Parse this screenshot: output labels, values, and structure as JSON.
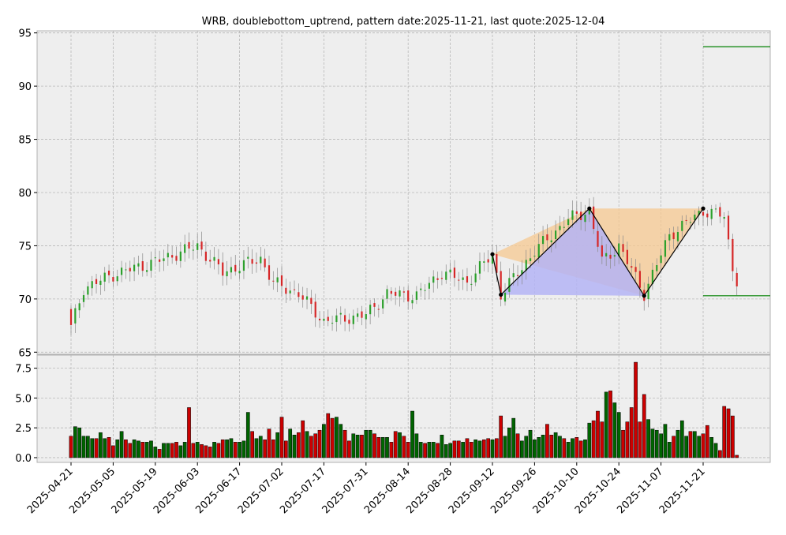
{
  "chart_data": {
    "type": "candlestick",
    "title": "WRB, doublebottom_uptrend, pattern date:2025-11-21, last quote:2025-12-04",
    "price_axis": {
      "ylim": [
        64.8,
        95.2
      ],
      "ticks": [
        "65",
        "70",
        "75",
        "80",
        "85",
        "90",
        "95"
      ]
    },
    "volume_axis": {
      "ylim": [
        -0.4,
        8.6
      ],
      "ticks": [
        "0.0",
        "2.5",
        "5.0",
        "7.5"
      ]
    },
    "x_tick_labels": [
      "2025-04-21",
      "2025-05-05",
      "2025-05-19",
      "2025-06-03",
      "2025-06-17",
      "2025-07-02",
      "2025-07-17",
      "2025-07-31",
      "2025-08-14",
      "2025-08-28",
      "2025-09-12",
      "2025-09-26",
      "2025-10-10",
      "2025-10-24",
      "2025-11-07",
      "2025-11-21"
    ],
    "grid": true,
    "colors": {
      "up": "#2ca02c",
      "down": "#d62728",
      "volume_up": "#006400",
      "volume_down": "#cc0000",
      "pattern_line": "#000000",
      "level_line": "#008000",
      "fill_orange": "#f5c890",
      "fill_blue": "#b4b4f5",
      "panel_bg": "#eeeeee"
    },
    "pattern_points": [
      {
        "bar": 100,
        "price": 74.2
      },
      {
        "bar": 102,
        "price": 70.4
      },
      {
        "bar": 123,
        "price": 78.5
      },
      {
        "bar": 136,
        "price": 70.3
      },
      {
        "bar": 150,
        "price": 78.5
      }
    ],
    "levels": [
      {
        "price": 93.7
      },
      {
        "price": 70.3
      }
    ],
    "price_key": [
      {
        "bar": 0,
        "close": 67.3
      },
      {
        "bar": 3,
        "close": 71.0
      },
      {
        "bar": 10,
        "close": 72.3
      },
      {
        "bar": 20,
        "close": 73.5
      },
      {
        "bar": 30,
        "close": 75.0
      },
      {
        "bar": 36,
        "close": 72.5
      },
      {
        "bar": 45,
        "close": 73.8
      },
      {
        "bar": 48,
        "close": 71.5
      },
      {
        "bar": 54,
        "close": 70.5
      },
      {
        "bar": 60,
        "close": 67.9
      },
      {
        "bar": 70,
        "close": 68.5
      },
      {
        "bar": 75,
        "close": 70.5
      },
      {
        "bar": 82,
        "close": 70.3
      },
      {
        "bar": 88,
        "close": 72.5
      },
      {
        "bar": 94,
        "close": 71.6
      },
      {
        "bar": 100,
        "close": 74.2
      },
      {
        "bar": 102,
        "close": 70.4
      },
      {
        "bar": 110,
        "close": 74.5
      },
      {
        "bar": 118,
        "close": 77.5
      },
      {
        "bar": 123,
        "close": 78.3
      },
      {
        "bar": 126,
        "close": 73.5
      },
      {
        "bar": 130,
        "close": 75.0
      },
      {
        "bar": 136,
        "close": 70.5
      },
      {
        "bar": 142,
        "close": 76.0
      },
      {
        "bar": 150,
        "close": 78.3
      },
      {
        "bar": 155,
        "close": 77.8
      },
      {
        "bar": 157,
        "close": 72.8
      },
      {
        "bar": 159,
        "close": 70.8
      }
    ],
    "volumes": [
      1.8,
      2.6,
      2.5,
      1.8,
      1.8,
      1.6,
      1.6,
      2.1,
      1.6,
      1.7,
      1.0,
      1.5,
      2.2,
      1.5,
      1.2,
      1.5,
      1.4,
      1.3,
      1.3,
      1.4,
      0.9,
      0.7,
      1.2,
      1.2,
      1.2,
      1.3,
      1.0,
      1.3,
      4.2,
      1.2,
      1.3,
      1.1,
      1.0,
      0.9,
      1.3,
      1.2,
      1.5,
      1.5,
      1.6,
      1.3,
      1.3,
      1.4,
      3.8,
      2.2,
      1.6,
      1.8,
      1.5,
      2.4,
      1.5,
      2.1,
      3.4,
      1.4,
      2.4,
      1.9,
      2.1,
      3.1,
      2.2,
      1.8,
      2.0,
      2.3,
      2.8,
      3.7,
      3.3,
      3.4,
      2.8,
      2.3,
      1.4,
      2.0,
      1.9,
      1.9,
      2.3,
      2.3,
      2.0,
      1.7,
      1.7,
      1.7,
      1.3,
      2.2,
      2.1,
      1.8,
      1.3,
      3.9,
      2.0,
      1.3,
      1.2,
      1.3,
      1.3,
      1.2,
      1.9,
      1.1,
      1.2,
      1.4,
      1.4,
      1.3,
      1.6,
      1.3,
      1.5,
      1.4,
      1.5,
      1.6,
      1.5,
      1.6,
      3.5,
      1.8,
      2.5,
      3.3,
      2.0,
      1.4,
      1.8,
      2.3,
      1.5,
      1.7,
      1.9,
      2.8,
      1.9,
      2.1,
      1.8,
      1.6,
      1.3,
      1.6,
      1.7,
      1.4,
      1.5,
      2.9,
      3.1,
      3.9,
      3.0,
      5.5,
      5.6,
      4.6,
      3.8,
      2.3,
      3.0,
      4.2,
      8.0,
      3.0,
      5.3,
      3.2,
      2.4,
      2.3,
      2.0,
      2.8,
      1.3,
      1.8,
      2.3,
      3.1,
      1.8,
      2.2,
      2.2,
      1.8,
      2.0,
      2.7,
      1.7,
      1.2,
      0.6,
      4.3,
      4.1,
      3.5,
      0.2
    ]
  }
}
